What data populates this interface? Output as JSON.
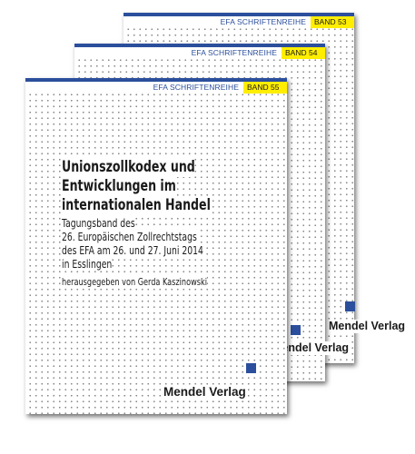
{
  "books": [
    {
      "series": "EFA SCHRIFTENREIHE",
      "band": "BAND 53",
      "publisher": "Mendel Verlag"
    },
    {
      "series": "EFA SCHRIFTENREIHE",
      "band": "BAND 54",
      "publisher": "Mendel Verlag"
    },
    {
      "series": "EFA SCHRIFTENREIHE",
      "band": "BAND 55",
      "publisher": "Mendel Verlag"
    }
  ],
  "front": {
    "title": [
      "Unionszollkodex und",
      "Entwicklungen im",
      "internationalen Handel"
    ],
    "subtitle": [
      "Tagungsband des",
      "26. Europäischen Zollrechtstags",
      "des EFA am 26. und 27. Juni 2014",
      "in Esslingen"
    ],
    "editor": "herausgegeben von Gerda Kaszinowski"
  },
  "colors": {
    "accent_blue": "#2b4f9c",
    "band_yellow": "#ffee00",
    "dots": "#8a8a8a"
  },
  "icons": {
    "decor_square": "blue-square-icon"
  }
}
